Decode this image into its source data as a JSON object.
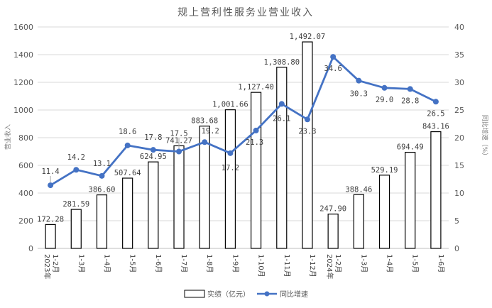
{
  "chart_data": {
    "type": "bar+line",
    "title": "规上营利性服务业营业收入",
    "categories": [
      {
        "year": "2023年",
        "period": "1-2月"
      },
      {
        "year": "",
        "period": "1-3月"
      },
      {
        "year": "",
        "period": "1-4月"
      },
      {
        "year": "",
        "period": "1-5月"
      },
      {
        "year": "",
        "period": "1-6月"
      },
      {
        "year": "",
        "period": "1-7月"
      },
      {
        "year": "",
        "period": "1-8月"
      },
      {
        "year": "",
        "period": "1-9月"
      },
      {
        "year": "",
        "period": "1-10月"
      },
      {
        "year": "",
        "period": "1-11月"
      },
      {
        "year": "",
        "period": "1-12月"
      },
      {
        "year": "2024年",
        "period": "1-2月"
      },
      {
        "year": "",
        "period": "1-3月"
      },
      {
        "year": "",
        "period": "1-4月"
      },
      {
        "year": "",
        "period": "1-5月"
      },
      {
        "year": "",
        "period": "1-6月"
      }
    ],
    "series": [
      {
        "name": "实绩（亿元）",
        "type": "bar",
        "axis": "left",
        "values": [
          172.28,
          281.59,
          386.6,
          507.64,
          624.95,
          741.27,
          883.68,
          1001.66,
          1127.4,
          1308.8,
          1492.07,
          247.9,
          388.46,
          529.19,
          694.49,
          843.16
        ],
        "labels": [
          "172.28",
          "281.59",
          "386.60",
          "507.64",
          "624.95",
          "741.27",
          "883.68",
          "1,001.66",
          "1,127.40",
          "1,308.80",
          "1,492.07",
          "247.90",
          "388.46",
          "529.19",
          "694.49",
          "843.16"
        ]
      },
      {
        "name": "同比增速",
        "type": "line",
        "axis": "right",
        "color": "#4472c4",
        "values": [
          11.4,
          14.2,
          13.1,
          18.6,
          17.8,
          17.5,
          19.2,
          17.2,
          21.3,
          26.1,
          23.3,
          34.6,
          30.3,
          29.0,
          28.8,
          26.5
        ],
        "labels": [
          "11.4",
          "14.2",
          "13.1",
          "18.6",
          "17.8",
          "17.5",
          "19.2",
          "17.2",
          "21.3",
          "26.1",
          "23.3",
          "34.6",
          "30.3",
          "29.0",
          "28.8",
          "26.5"
        ]
      }
    ],
    "ylabel_left": "营业收入",
    "ylabel_right": "同比增速（%）",
    "ylim_left": [
      0,
      1600
    ],
    "yticks_left": [
      "0",
      "200",
      "400",
      "600",
      "800",
      "1000",
      "1200",
      "1400",
      "1600"
    ],
    "ylim_right": [
      0,
      40
    ],
    "yticks_right": [
      "0",
      "5",
      "10",
      "15",
      "20",
      "25",
      "30",
      "35",
      "40"
    ],
    "grid": true,
    "legend_position": "bottom"
  }
}
